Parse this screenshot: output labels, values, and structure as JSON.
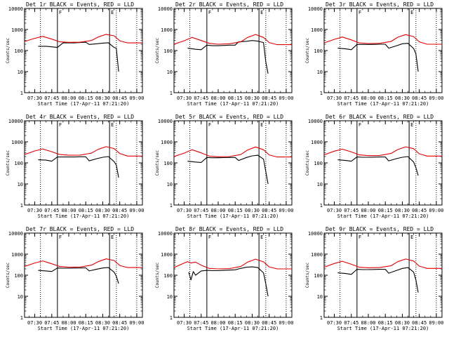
{
  "colors": {
    "events": "#000000",
    "lld": "#e00000",
    "background": "#ffffff"
  },
  "x_tick_labels": [
    "07:30",
    "07:45",
    "08:00",
    "08:15",
    "08:30",
    "08:45",
    "09:00"
  ],
  "y_tick_labels": [
    "1",
    "10",
    "100",
    "1000",
    "10000"
  ],
  "xlabel": "Start Time (17-Apr-11 07:21:20)",
  "ylabel": "Counts/sec",
  "chart_data": [
    {
      "type": "line",
      "title": "Det 1r BLACK = Events, RED = LLD",
      "xlabel": "Start Time (17-Apr-11 07:21:20)",
      "ylabel": "Counts/sec",
      "y_scale": "log",
      "ylim": [
        1,
        10000
      ],
      "xlim": [
        "07:21",
        "09:05"
      ],
      "x_ticks": [
        "07:30",
        "07:45",
        "08:00",
        "08:15",
        "08:30",
        "08:45",
        "09:00"
      ],
      "vlines_solid": [
        "07:50",
        "08:36"
      ],
      "vlines_dotted": [
        "07:35",
        "08:42",
        "09:00"
      ],
      "markers": {
        "07:50": "F",
        "08:36": "E"
      },
      "series": [
        {
          "key": "events",
          "x": [
            "07:33",
            "07:40",
            "07:45",
            "07:50",
            "07:55",
            "08:00",
            "08:05",
            "08:10",
            "08:15",
            "08:18",
            "08:25",
            "08:30",
            "08:35",
            "08:40",
            "08:42",
            "08:44"
          ],
          "values": [
            160,
            160,
            150,
            140,
            230,
            230,
            230,
            240,
            250,
            195,
            210,
            225,
            235,
            140,
            130,
            10
          ]
        },
        {
          "key": "lld",
          "x": [
            "07:21",
            "07:30",
            "07:37",
            "07:45",
            "07:52",
            "08:00",
            "08:10",
            "08:20",
            "08:26",
            "08:33",
            "08:40",
            "08:45",
            "08:52",
            "09:00",
            "09:05"
          ],
          "values": [
            270,
            380,
            470,
            350,
            260,
            245,
            250,
            300,
            440,
            590,
            500,
            290,
            230,
            230,
            230
          ]
        }
      ]
    },
    {
      "type": "line",
      "title": "Det 2r BLACK = Events, RED = LLD",
      "xlabel": "Start Time (17-Apr-11 07:21:20)",
      "ylabel": "Counts/sec",
      "y_scale": "log",
      "ylim": [
        1,
        10000
      ],
      "xlim": [
        "07:21",
        "09:05"
      ],
      "x_ticks": [
        "07:30",
        "07:45",
        "08:00",
        "08:15",
        "08:30",
        "08:45",
        "09:00"
      ],
      "vlines_solid": [
        "07:50",
        "08:36"
      ],
      "vlines_dotted": [
        "07:35",
        "08:42",
        "09:00"
      ],
      "markers": {
        "07:50": "F",
        "08:36": "E"
      },
      "series": [
        {
          "key": "events",
          "x": [
            "07:33",
            "07:40",
            "07:45",
            "07:50",
            "07:55",
            "08:00",
            "08:05",
            "08:10",
            "08:15",
            "08:18",
            "08:25",
            "08:30",
            "08:35",
            "08:40",
            "08:42",
            "08:44"
          ],
          "values": [
            130,
            115,
            110,
            180,
            170,
            170,
            175,
            180,
            180,
            260,
            275,
            300,
            280,
            240,
            30,
            8
          ]
        },
        {
          "key": "lld",
          "x": [
            "07:21",
            "07:30",
            "07:37",
            "07:45",
            "07:52",
            "08:00",
            "08:10",
            "08:20",
            "08:26",
            "08:33",
            "08:40",
            "08:45",
            "08:52",
            "09:00",
            "09:05"
          ],
          "values": [
            200,
            290,
            420,
            300,
            220,
            200,
            210,
            260,
            420,
            580,
            420,
            240,
            190,
            190,
            190
          ]
        }
      ]
    },
    {
      "type": "line",
      "title": "Det 3r BLACK = Events, RED = LLD",
      "xlabel": "Start Time (17-Apr-11 07:21:20)",
      "ylabel": "Counts/sec",
      "y_scale": "log",
      "ylim": [
        1,
        10000
      ],
      "xlim": [
        "07:21",
        "09:05"
      ],
      "x_ticks": [
        "07:30",
        "07:45",
        "08:00",
        "08:15",
        "08:30",
        "08:45",
        "09:00"
      ],
      "vlines_solid": [
        "07:50",
        "08:36"
      ],
      "vlines_dotted": [
        "07:35",
        "08:42",
        "09:00"
      ],
      "markers": {
        "07:50": "F",
        "08:36": "E"
      },
      "series": [
        {
          "key": "events",
          "x": [
            "07:33",
            "07:40",
            "07:45",
            "07:50",
            "07:55",
            "08:00",
            "08:05",
            "08:10",
            "08:15",
            "08:18",
            "08:25",
            "08:30",
            "08:35",
            "08:40",
            "08:42",
            "08:44"
          ],
          "values": [
            130,
            120,
            110,
            195,
            195,
            195,
            195,
            200,
            200,
            130,
            170,
            210,
            220,
            125,
            70,
            10
          ]
        },
        {
          "key": "lld",
          "x": [
            "07:21",
            "07:30",
            "07:37",
            "07:45",
            "07:52",
            "08:00",
            "08:10",
            "08:20",
            "08:26",
            "08:33",
            "08:40",
            "08:45",
            "08:52",
            "09:00",
            "09:05"
          ],
          "values": [
            230,
            340,
            440,
            320,
            230,
            215,
            220,
            270,
            430,
            570,
            460,
            260,
            200,
            200,
            200
          ]
        }
      ]
    },
    {
      "type": "line",
      "title": "Det 4r BLACK = Events, RED = LLD",
      "xlabel": "Start Time (17-Apr-11 07:21:20)",
      "ylabel": "Counts/sec",
      "y_scale": "log",
      "ylim": [
        1,
        10000
      ],
      "xlim": [
        "07:21",
        "09:05"
      ],
      "x_ticks": [
        "07:30",
        "07:45",
        "08:00",
        "08:15",
        "08:30",
        "08:45",
        "09:00"
      ],
      "vlines_solid": [
        "07:50",
        "08:36"
      ],
      "vlines_dotted": [
        "07:35",
        "08:42",
        "09:00"
      ],
      "markers": {
        "07:50": "F",
        "08:36": "E"
      },
      "series": [
        {
          "key": "events",
          "x": [
            "07:33",
            "07:40",
            "07:45",
            "07:50",
            "07:55",
            "08:00",
            "08:05",
            "08:10",
            "08:15",
            "08:18",
            "08:25",
            "08:30",
            "08:35",
            "08:40",
            "08:42",
            "08:44"
          ],
          "values": [
            140,
            135,
            120,
            190,
            190,
            190,
            190,
            195,
            195,
            125,
            160,
            185,
            200,
            115,
            80,
            20
          ]
        },
        {
          "key": "lld",
          "x": [
            "07:21",
            "07:30",
            "07:37",
            "07:45",
            "07:52",
            "08:00",
            "08:10",
            "08:20",
            "08:26",
            "08:33",
            "08:40",
            "08:45",
            "08:52",
            "09:00",
            "09:05"
          ],
          "values": [
            250,
            370,
            460,
            340,
            250,
            230,
            235,
            290,
            440,
            590,
            480,
            280,
            210,
            210,
            210
          ]
        }
      ]
    },
    {
      "type": "line",
      "title": "Det 5r BLACK = Events, RED = LLD",
      "xlabel": "Start Time (17-Apr-11 07:21:20)",
      "ylabel": "Counts/sec",
      "y_scale": "log",
      "ylim": [
        1,
        10000
      ],
      "xlim": [
        "07:21",
        "09:05"
      ],
      "x_ticks": [
        "07:30",
        "07:45",
        "08:00",
        "08:15",
        "08:30",
        "08:45",
        "09:00"
      ],
      "vlines_solid": [
        "07:50",
        "08:36"
      ],
      "vlines_dotted": [
        "07:35",
        "08:42",
        "09:00"
      ],
      "markers": {
        "07:50": "F",
        "08:36": "E"
      },
      "series": [
        {
          "key": "events",
          "x": [
            "07:33",
            "07:40",
            "07:45",
            "07:50",
            "07:55",
            "08:00",
            "08:05",
            "08:10",
            "08:15",
            "08:18",
            "08:25",
            "08:30",
            "08:35",
            "08:40",
            "08:42",
            "08:44"
          ],
          "values": [
            120,
            110,
            105,
            180,
            175,
            175,
            178,
            180,
            180,
            130,
            180,
            215,
            230,
            150,
            40,
            10
          ]
        },
        {
          "key": "lld",
          "x": [
            "07:21",
            "07:30",
            "07:37",
            "07:45",
            "07:52",
            "08:00",
            "08:10",
            "08:20",
            "08:26",
            "08:33",
            "08:40",
            "08:45",
            "08:52",
            "09:00",
            "09:05"
          ],
          "values": [
            200,
            290,
            420,
            300,
            210,
            195,
            200,
            250,
            410,
            570,
            420,
            240,
            190,
            190,
            190
          ]
        }
      ]
    },
    {
      "type": "line",
      "title": "Det 6r BLACK = Events, RED = LLD",
      "xlabel": "Start Time (17-Apr-11 07:21:20)",
      "ylabel": "Counts/sec",
      "y_scale": "log",
      "ylim": [
        1,
        10000
      ],
      "xlim": [
        "07:21",
        "09:05"
      ],
      "x_ticks": [
        "07:30",
        "07:45",
        "08:00",
        "08:15",
        "08:30",
        "08:45",
        "09:00"
      ],
      "vlines_solid": [
        "07:50",
        "08:36"
      ],
      "vlines_dotted": [
        "07:35",
        "08:42",
        "09:00"
      ],
      "markers": {
        "07:50": "F",
        "08:36": "E"
      },
      "series": [
        {
          "key": "events",
          "x": [
            "07:33",
            "07:40",
            "07:45",
            "07:50",
            "07:55",
            "08:00",
            "08:05",
            "08:10",
            "08:15",
            "08:18",
            "08:25",
            "08:30",
            "08:35",
            "08:40",
            "08:42",
            "08:44"
          ],
          "values": [
            140,
            130,
            120,
            190,
            185,
            185,
            188,
            190,
            190,
            125,
            160,
            185,
            200,
            110,
            60,
            25
          ]
        },
        {
          "key": "lld",
          "x": [
            "07:21",
            "07:30",
            "07:37",
            "07:45",
            "07:52",
            "08:00",
            "08:10",
            "08:20",
            "08:26",
            "08:33",
            "08:40",
            "08:45",
            "08:52",
            "09:00",
            "09:05"
          ],
          "values": [
            240,
            360,
            450,
            330,
            240,
            220,
            225,
            280,
            430,
            580,
            470,
            270,
            210,
            210,
            210
          ]
        }
      ]
    },
    {
      "type": "line",
      "title": "Det 7r BLACK = Events, RED = LLD",
      "xlabel": "Start Time (17-Apr-11 07:21:20)",
      "ylabel": "Counts/sec",
      "y_scale": "log",
      "ylim": [
        1,
        10000
      ],
      "xlim": [
        "07:21",
        "09:05"
      ],
      "x_ticks": [
        "07:30",
        "07:45",
        "08:00",
        "08:15",
        "08:30",
        "08:45",
        "09:00"
      ],
      "vlines_solid": [
        "07:50",
        "08:36"
      ],
      "vlines_dotted": [
        "07:35",
        "08:42",
        "09:00"
      ],
      "markers": {
        "07:50": "F",
        "08:36": "E"
      },
      "series": [
        {
          "key": "events",
          "x": [
            "07:33",
            "07:40",
            "07:45",
            "07:50",
            "07:55",
            "08:00",
            "08:05",
            "08:10",
            "08:15",
            "08:18",
            "08:25",
            "08:30",
            "08:35",
            "08:40",
            "08:42",
            "08:44"
          ],
          "values": [
            170,
            160,
            150,
            220,
            215,
            215,
            218,
            220,
            225,
            160,
            195,
            220,
            230,
            140,
            90,
            40
          ]
        },
        {
          "key": "lld",
          "x": [
            "07:21",
            "07:30",
            "07:37",
            "07:45",
            "07:52",
            "08:00",
            "08:10",
            "08:20",
            "08:26",
            "08:33",
            "08:40",
            "08:45",
            "08:52",
            "09:00",
            "09:05"
          ],
          "values": [
            260,
            380,
            480,
            350,
            260,
            240,
            245,
            300,
            440,
            600,
            500,
            290,
            230,
            230,
            230
          ]
        }
      ]
    },
    {
      "type": "line",
      "title": "Det 8r BLACK = Events, RED = LLD",
      "xlabel": "Start Time (17-Apr-11 07:21:20)",
      "ylabel": "Counts/sec",
      "y_scale": "log",
      "ylim": [
        1,
        10000
      ],
      "xlim": [
        "07:21",
        "09:05"
      ],
      "x_ticks": [
        "07:30",
        "07:45",
        "08:00",
        "08:15",
        "08:30",
        "08:45",
        "09:00"
      ],
      "vlines_solid": [
        "07:50",
        "08:36"
      ],
      "vlines_dotted": [
        "07:35",
        "08:42",
        "09:00"
      ],
      "markers": {
        "07:50": "F",
        "08:36": "E"
      },
      "series": [
        {
          "key": "events",
          "x": [
            "07:34",
            "07:36",
            "07:38",
            "07:40",
            "07:45",
            "07:50",
            "07:55",
            "08:00",
            "08:05",
            "08:10",
            "08:15",
            "08:18",
            "08:25",
            "08:30",
            "08:35",
            "08:40",
            "08:42",
            "08:44"
          ],
          "values": [
            140,
            60,
            150,
            100,
            160,
            170,
            165,
            165,
            170,
            175,
            180,
            200,
            240,
            250,
            230,
            130,
            40,
            10
          ]
        },
        {
          "key": "lld",
          "x": [
            "07:21",
            "07:30",
            "07:33",
            "07:36",
            "07:40",
            "07:45",
            "07:52",
            "08:00",
            "08:10",
            "08:20",
            "08:26",
            "08:33",
            "08:40",
            "08:45",
            "08:52",
            "09:00",
            "09:05"
          ],
          "values": [
            230,
            380,
            440,
            380,
            420,
            300,
            210,
            200,
            205,
            260,
            420,
            580,
            430,
            250,
            200,
            200,
            200
          ]
        }
      ]
    },
    {
      "type": "line",
      "title": "Det 9r BLACK = Events, RED = LLD",
      "xlabel": "Start Time (17-Apr-11 07:21:20)",
      "ylabel": "Counts/sec",
      "y_scale": "log",
      "ylim": [
        1,
        10000
      ],
      "xlim": [
        "07:21",
        "09:05"
      ],
      "x_ticks": [
        "07:30",
        "07:45",
        "08:00",
        "08:15",
        "08:30",
        "08:45",
        "09:00"
      ],
      "vlines_solid": [
        "07:50",
        "08:36"
      ],
      "vlines_dotted": [
        "07:35",
        "08:42",
        "09:00"
      ],
      "markers": {
        "07:50": "F",
        "08:36": "E"
      },
      "series": [
        {
          "key": "events",
          "x": [
            "07:33",
            "07:40",
            "07:45",
            "07:50",
            "07:55",
            "08:00",
            "08:05",
            "08:10",
            "08:15",
            "08:18",
            "08:25",
            "08:30",
            "08:35",
            "08:40",
            "08:42",
            "08:44"
          ],
          "values": [
            130,
            120,
            110,
            190,
            185,
            185,
            188,
            190,
            190,
            125,
            170,
            210,
            230,
            140,
            60,
            15
          ]
        },
        {
          "key": "lld",
          "x": [
            "07:21",
            "07:30",
            "07:37",
            "07:45",
            "07:52",
            "08:00",
            "08:10",
            "08:20",
            "08:26",
            "08:33",
            "08:40",
            "08:45",
            "08:52",
            "09:00",
            "09:05"
          ],
          "values": [
            240,
            360,
            460,
            330,
            240,
            225,
            230,
            280,
            440,
            590,
            470,
            270,
            210,
            210,
            210
          ]
        }
      ]
    }
  ]
}
